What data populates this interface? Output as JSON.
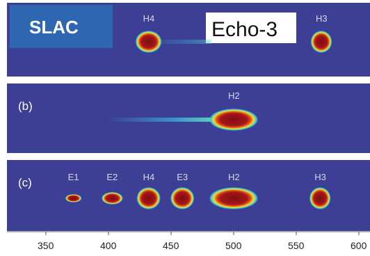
{
  "logo": {
    "text": "SLAC"
  },
  "overlay_title": "Echo-3",
  "panels": [
    {
      "letter": ""
    },
    {
      "letter": "(b)"
    },
    {
      "letter": "(c)"
    }
  ],
  "chart_data": {
    "type": "heatmap",
    "title": "",
    "xlabel": "",
    "ylabel": "",
    "x_ticks": [
      350,
      400,
      450,
      500,
      550,
      600
    ],
    "xlim": [
      330,
      608
    ],
    "panels": [
      {
        "name": "",
        "features": [
          {
            "label": "H4",
            "x": 432,
            "width": 10,
            "intensity": "high"
          },
          {
            "label": "H3",
            "x": 570,
            "width": 6,
            "intensity": "high"
          }
        ]
      },
      {
        "name": "(b)",
        "features": [
          {
            "label": "H2",
            "x": 500,
            "width": 28,
            "intensity": "high"
          }
        ]
      },
      {
        "name": "(c)",
        "features": [
          {
            "label": "E1",
            "x": 372,
            "width": 2,
            "intensity": "low"
          },
          {
            "label": "E2",
            "x": 403,
            "width": 6,
            "intensity": "medium"
          },
          {
            "label": "H4",
            "x": 432,
            "width": 8,
            "intensity": "high"
          },
          {
            "label": "E3",
            "x": 459,
            "width": 8,
            "intensity": "high"
          },
          {
            "label": "H2",
            "x": 500,
            "width": 28,
            "intensity": "high"
          },
          {
            "label": "H3",
            "x": 569,
            "width": 6,
            "intensity": "high"
          }
        ]
      }
    ],
    "colors": {
      "background": "#3d3f95",
      "hot": "#8a1218",
      "mid": "#f0e020",
      "cool": "#32c0e8"
    }
  }
}
